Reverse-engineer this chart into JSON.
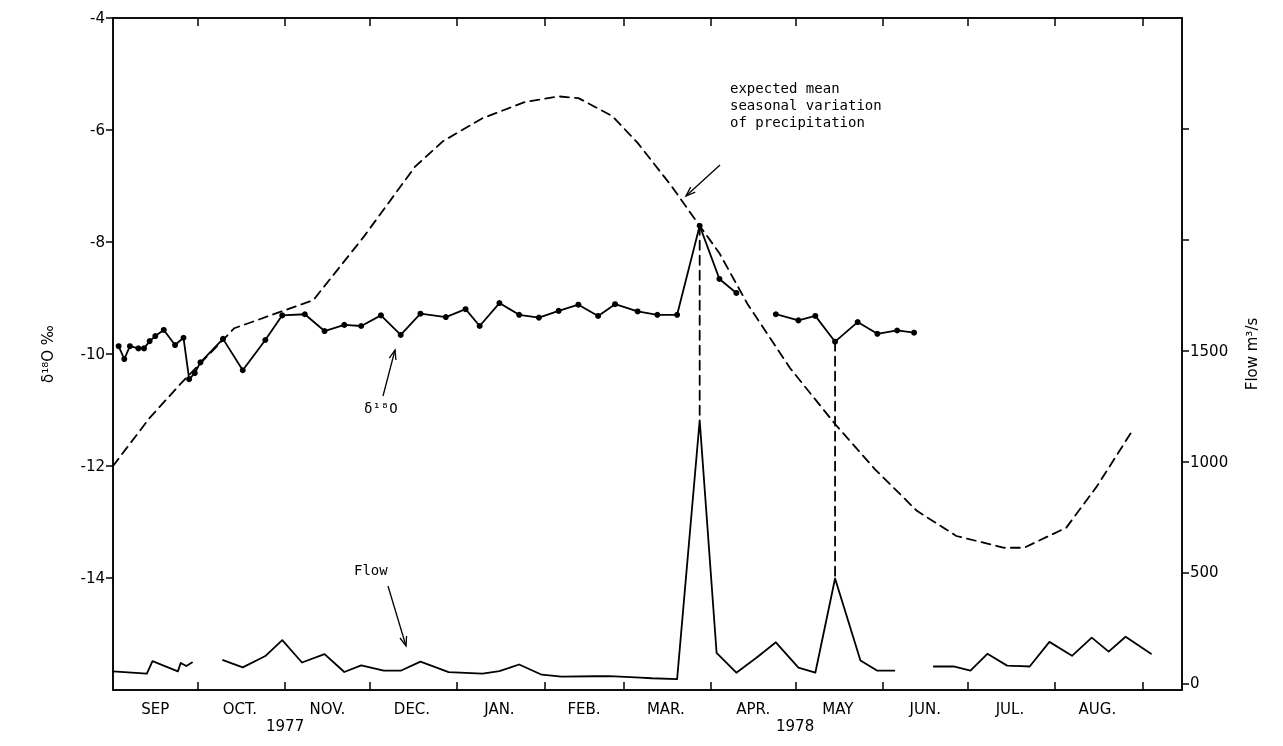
{
  "chart_data": {
    "type": "line",
    "ylabel": "δ¹⁸O ‰",
    "y2label": "Flow m³/s",
    "xlim": [
      "1977-09-01",
      "1978-09-15"
    ],
    "xticks": [
      {
        "value": "1977-09-16",
        "label": "SEP"
      },
      {
        "value": "1977-10-01",
        "label": null
      },
      {
        "value": "1977-10-16",
        "label": "OCT."
      },
      {
        "value": "1977-11-01",
        "label": null
      },
      {
        "value": "1977-11-16",
        "label": "NOV."
      },
      {
        "value": "1977-12-01",
        "label": null
      },
      {
        "value": "1977-12-16",
        "label": "DEC."
      },
      {
        "value": "1978-01-01",
        "label": null
      },
      {
        "value": "1978-01-16",
        "label": "JAN."
      },
      {
        "value": "1978-02-01",
        "label": null
      },
      {
        "value": "1978-02-15",
        "label": "FEB."
      },
      {
        "value": "1978-03-01",
        "label": null
      },
      {
        "value": "1978-03-16",
        "label": "MAR."
      },
      {
        "value": "1978-04-01",
        "label": null
      },
      {
        "value": "1978-04-16",
        "label": "APR."
      },
      {
        "value": "1978-05-01",
        "label": null
      },
      {
        "value": "1978-05-16",
        "label": "MAY"
      },
      {
        "value": "1978-06-01",
        "label": null
      },
      {
        "value": "1978-06-16",
        "label": "JUN."
      },
      {
        "value": "1978-07-01",
        "label": null
      },
      {
        "value": "1978-07-16",
        "label": "JUL."
      },
      {
        "value": "1978-08-01",
        "label": null
      },
      {
        "value": "1978-08-16",
        "label": "AUG."
      },
      {
        "value": "1978-09-01",
        "label": null
      }
    ],
    "ylim": [
      -16,
      -4
    ],
    "yticks": [
      -4,
      -6,
      -8,
      -10,
      -12,
      -14
    ],
    "y2lim": [
      -30,
      3000
    ],
    "y2ticks": [
      0,
      500,
      1000,
      1500,
      {
        "value": 2000,
        "label": null
      },
      {
        "value": 2500,
        "label": null
      }
    ],
    "series": [
      {
        "color": "#000000",
        "marker": "circle",
        "line_style": "solid",
        "x": [
          "1977-09-03",
          "1977-09-05",
          "1977-09-07",
          "1977-09-10",
          "1977-09-12",
          "1977-09-14",
          "1977-09-16",
          "1977-09-19",
          "1977-09-23",
          "1977-09-26",
          "1977-09-28",
          "1977-09-30",
          "1977-10-02",
          "1977-10-10",
          "1977-10-17",
          "1977-10-25",
          "1977-10-31",
          "1977-11-08",
          "1977-11-15",
          "1977-11-22",
          "1977-11-28",
          "1977-12-05",
          "1977-12-12",
          "1977-12-19",
          "1977-12-28",
          "1978-01-04",
          "1978-01-09",
          "1978-01-16",
          "1978-01-23",
          "1978-01-30",
          "1978-02-06",
          "1978-02-13",
          "1978-02-20",
          "1978-02-26",
          "1978-03-06",
          "1978-03-13",
          "1978-03-20",
          "1978-03-28",
          "1978-04-04",
          "1978-04-10",
          "1978-04-17",
          "1978-04-24",
          "1978-05-02",
          "1978-05-08",
          "1978-05-15",
          "1978-05-23",
          "1978-05-30",
          "1978-06-06",
          "1978-06-12"
        ],
        "values": [
          -9.86,
          -10.09,
          -9.86,
          -9.9,
          -9.9,
          -9.77,
          -9.68,
          -9.57,
          -9.84,
          -9.71,
          -10.45,
          -10.34,
          -10.15,
          -9.73,
          -10.29,
          -9.75,
          -9.31,
          -9.29,
          -9.59,
          -9.48,
          -9.5,
          -9.31,
          -9.66,
          -9.28,
          -9.34,
          -9.2,
          -9.5,
          -9.09,
          -9.3,
          -9.35,
          -9.23,
          -9.12,
          -9.32,
          -9.11,
          -9.24,
          -9.3,
          -9.3,
          -7.71,
          -8.66,
          -8.91,
          null,
          -9.29,
          -9.4,
          -9.32,
          -9.78,
          -9.43,
          -9.64,
          -9.58,
          -9.62
        ]
      },
      {
        "axis": "y2",
        "color": "#000000",
        "marker": "none",
        "line_style": "solid",
        "x": [
          "1977-09-01",
          "1977-09-13",
          "1977-09-15",
          "1977-09-24",
          "1977-09-25",
          "1977-09-27",
          "1977-09-29",
          "1977-10-04",
          "1977-10-10",
          "1977-10-17",
          "1977-10-25",
          "1977-10-31",
          "1977-11-07",
          "1977-11-15",
          "1977-11-22",
          "1977-11-28",
          "1977-12-06",
          "1977-12-12",
          "1977-12-19",
          "1977-12-29",
          "1978-01-10",
          "1978-01-16",
          "1978-01-23",
          "1978-01-31",
          "1978-02-07",
          "1978-02-19",
          "1978-02-24",
          "1978-03-07",
          "1978-03-11",
          "1978-03-20",
          "1978-03-28",
          "1978-04-03",
          "1978-04-10",
          "1978-04-17",
          "1978-04-24",
          "1978-05-02",
          "1978-05-08",
          "1978-05-15",
          "1978-05-24",
          "1978-05-30",
          "1978-06-05",
          "1978-06-12",
          "1978-06-19",
          "1978-06-26",
          "1978-07-02",
          "1978-07-08",
          "1978-07-15",
          "1978-07-23",
          "1978-07-30",
          "1978-08-07",
          "1978-08-14",
          "1978-08-20",
          "1978-08-26",
          "1978-09-04"
        ],
        "values": [
          54,
          44,
          100,
          54,
          92,
          78,
          94,
          null,
          105,
          72,
          123,
          195,
          94,
          132,
          51,
          81,
          57,
          57,
          98,
          51,
          44,
          55,
          85,
          39,
          30,
          32,
          33,
          26,
          23,
          19,
          1186,
          137,
          48,
          114,
          185,
          71,
          48,
          473,
          103,
          57,
          57,
          null,
          76,
          76,
          57,
          133,
          80,
          76,
          187,
          124,
          206,
          143,
          210,
          133
        ]
      },
      {
        "color": "#000000",
        "marker": "none",
        "line_style": "dashed",
        "x": [
          "1977-09-01",
          "1977-09-14",
          "1977-09-25",
          "1977-10-14",
          "1977-11-11",
          "1977-11-29",
          "1977-12-17",
          "1977-12-27",
          "1978-01-10",
          "1978-01-25",
          "1978-02-06",
          "1978-02-13",
          "1978-02-25",
          "1978-03-06",
          "1978-03-18",
          "1978-03-27",
          "1978-04-04",
          "1978-04-14",
          "1978-04-29",
          "1978-05-15",
          "1978-05-29",
          "1978-06-13",
          "1978-06-27",
          "1978-07-14",
          "1978-07-21",
          "1978-08-05",
          "1978-08-16",
          "1978-08-28"
        ],
        "values": [
          -12,
          -11.14,
          -10.53,
          -9.54,
          -9.04,
          -7.9,
          -6.66,
          -6.2,
          -5.79,
          -5.5,
          -5.4,
          -5.43,
          -5.75,
          -6.23,
          -7.0,
          -7.64,
          -8.2,
          -9.11,
          -10.25,
          -11.25,
          -12.05,
          -12.8,
          -13.25,
          -13.46,
          -13.46,
          -13.1,
          -12.35,
          -11.4
        ]
      },
      {
        "color": "#000000",
        "marker": "none",
        "line_style": "dashed",
        "x": [
          "1978-03-28",
          "1978-03-28"
        ],
        "values": [
          -7.71,
          -11.18
        ]
      },
      {
        "color": "#000000",
        "marker": "none",
        "line_style": "dashed",
        "x": [
          "1978-05-15",
          "1978-05-15"
        ],
        "values": [
          -9.78,
          -14.0
        ]
      }
    ],
    "annotations": [
      "expected mean seasonal variation of precipitation",
      "δ¹⁸O",
      "Flow",
      "1977",
      "1978"
    ]
  }
}
